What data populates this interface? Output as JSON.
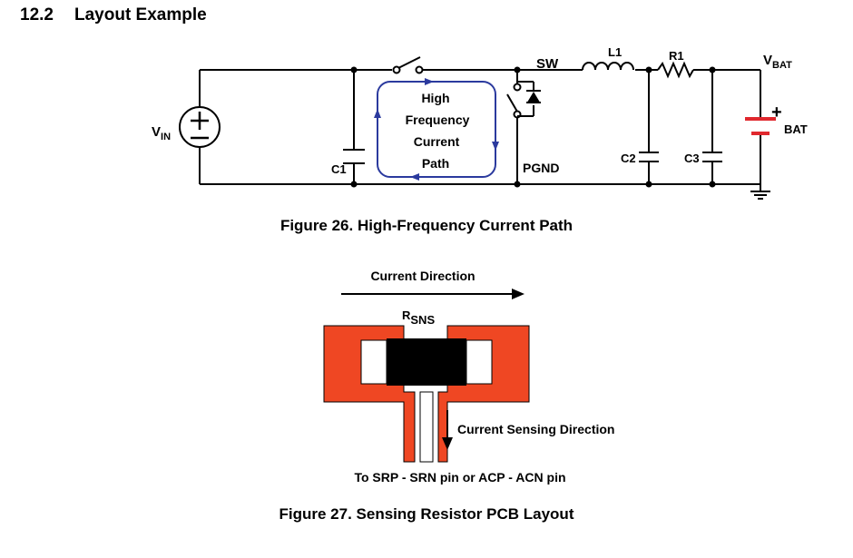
{
  "section": {
    "number": "12.2",
    "title": "Layout Example"
  },
  "figure26": {
    "caption": "Figure 26.  High-Frequency Current Path",
    "labels": {
      "vin_main": "V",
      "vin_sub": "IN",
      "c1": "C1",
      "sw": "SW",
      "l1": "L1",
      "r1": "R1",
      "vbat_main": "V",
      "vbat_sub": "BAT",
      "pgnd": "PGND",
      "c2": "C2",
      "c3": "C3",
      "bat": "BAT",
      "bat_plus": "+",
      "path_line1": "High",
      "path_line2": "Frequency",
      "path_line3": "Current",
      "path_line4": "Path"
    },
    "colors": {
      "wire": "#000000",
      "current_path": "#2b3a9e",
      "battery": "#e0282e"
    }
  },
  "figure27": {
    "caption": "Figure 27.  Sensing Resistor PCB Layout",
    "labels": {
      "current_direction": "Current Direction",
      "rsns_main": "R",
      "rsns_sub": "SNS",
      "sensing_direction": "Current Sensing Direction",
      "pin_note": "To SRP - SRN pin or ACP - ACN pin"
    },
    "colors": {
      "copper": "#ef4723",
      "resistor": "#000000",
      "outline": "#000000"
    }
  }
}
